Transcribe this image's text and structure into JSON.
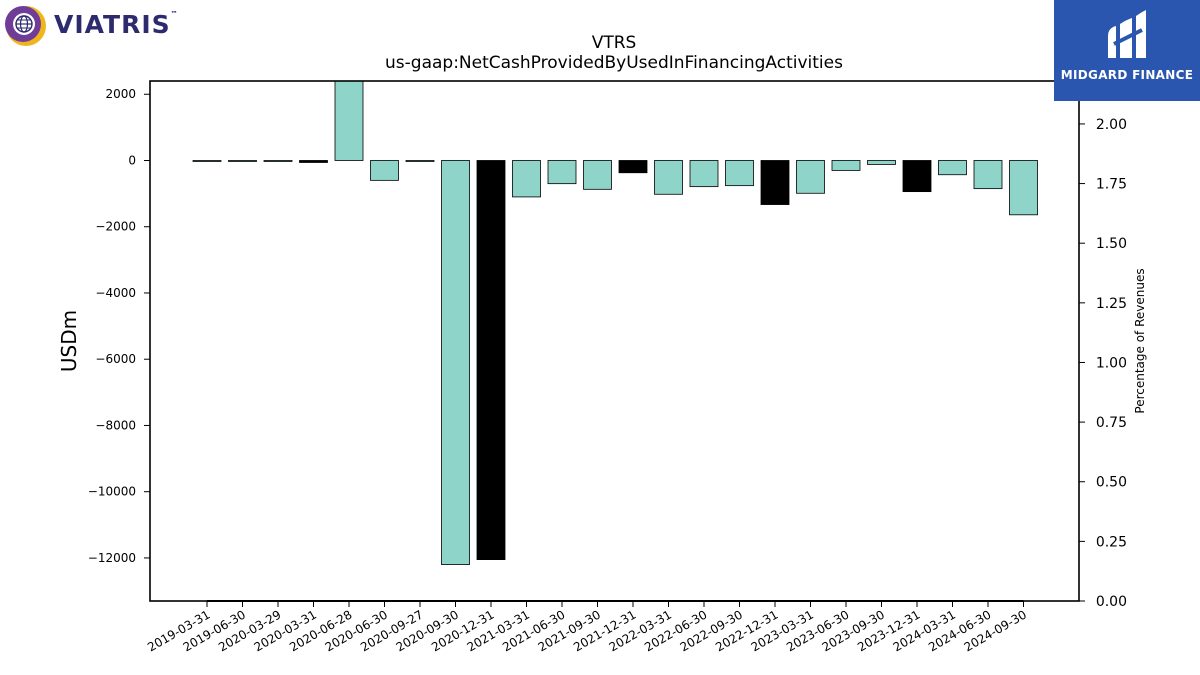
{
  "brand": {
    "left_logo_text": "VIATRIS",
    "tm": "™",
    "right_logo_text": "MIDGARD FINANCE",
    "right_logo_bg": "#2b56b0"
  },
  "chart_data": {
    "type": "bar",
    "title": "VTRS",
    "subtitle": "us-gaap:NetCashProvidedByUsedInFinancingActivities",
    "ylabel": "USDm",
    "y2label": "Percentage of Revenues",
    "ylim": [
      -13300,
      2400
    ],
    "y2lim": [
      0.0,
      2.18
    ],
    "yticks": [
      2000,
      0,
      -2000,
      -4000,
      -6000,
      -8000,
      -10000,
      -12000
    ],
    "ytick_labels": [
      "2000",
      "0",
      "−2000",
      "−4000",
      "−6000",
      "−8000",
      "−10000",
      "−12000"
    ],
    "y2ticks": [
      0.0,
      0.25,
      0.5,
      0.75,
      1.0,
      1.25,
      1.5,
      1.75,
      2.0
    ],
    "y2tick_labels": [
      "0.00",
      "0.25",
      "0.50",
      "0.75",
      "1.00",
      "1.25",
      "1.50",
      "1.75",
      "2.00"
    ],
    "categories": [
      "2019-03-31",
      "2019-06-30",
      "2020-03-29",
      "2020-03-31",
      "2020-06-28",
      "2020-06-30",
      "2020-09-27",
      "2020-09-30",
      "2020-12-31",
      "2021-03-31",
      "2021-06-30",
      "2021-09-30",
      "2021-12-31",
      "2022-03-31",
      "2022-06-30",
      "2022-09-30",
      "2022-12-31",
      "2023-03-31",
      "2023-06-30",
      "2023-09-30",
      "2023-12-31",
      "2024-03-31",
      "2024-06-30",
      "2024-09-30"
    ],
    "values": [
      -30,
      -20,
      -30,
      -60,
      2400,
      -600,
      -20,
      -12200,
      -12050,
      -1100,
      -700,
      -870,
      -370,
      -1020,
      -790,
      -760,
      -1330,
      -990,
      -300,
      -120,
      -940,
      -430,
      -850,
      -1640
    ],
    "bar_colors": [
      "teal",
      "teal",
      "teal",
      "black",
      "teal",
      "teal",
      "teal",
      "teal",
      "black",
      "teal",
      "teal",
      "teal",
      "black",
      "teal",
      "teal",
      "teal",
      "black",
      "teal",
      "teal",
      "teal",
      "black",
      "teal",
      "teal",
      "teal"
    ],
    "percent_of_revenues": [
      0.0,
      0.0,
      0.0,
      0.0,
      0.0,
      0.0,
      0.0,
      0.0,
      0.0,
      0.0,
      0.0,
      0.0,
      0.0,
      0.0,
      0.0,
      0.0,
      0.0,
      0.0,
      0.0,
      0.0,
      0.0,
      0.0,
      0.0,
      0.0
    ],
    "colors": {
      "teal": "#8fd4c8",
      "black": "#000000",
      "axis": "#000000"
    },
    "grid": false
  }
}
